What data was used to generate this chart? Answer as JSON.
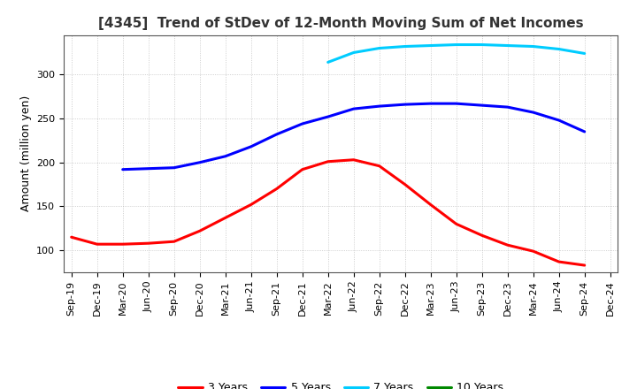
{
  "title": "[4345]  Trend of StDev of 12-Month Moving Sum of Net Incomes",
  "ylabel": "Amount (million yen)",
  "background_color": "#ffffff",
  "grid_color": "#aaaaaa",
  "x_labels": [
    "Sep-19",
    "Dec-19",
    "Mar-20",
    "Jun-20",
    "Sep-20",
    "Dec-20",
    "Mar-21",
    "Jun-21",
    "Sep-21",
    "Dec-21",
    "Mar-22",
    "Jun-22",
    "Sep-22",
    "Dec-22",
    "Mar-23",
    "Jun-23",
    "Sep-23",
    "Dec-23",
    "Mar-24",
    "Jun-24",
    "Sep-24",
    "Dec-24"
  ],
  "series": {
    "3 Years": {
      "color": "#ff0000",
      "values": [
        115,
        107,
        107,
        108,
        110,
        122,
        137,
        152,
        170,
        192,
        201,
        203,
        196,
        175,
        152,
        130,
        117,
        106,
        99,
        87,
        83,
        null
      ]
    },
    "5 Years": {
      "color": "#0000ff",
      "values": [
        null,
        null,
        192,
        193,
        194,
        200,
        207,
        218,
        232,
        244,
        252,
        261,
        264,
        266,
        267,
        267,
        265,
        263,
        257,
        248,
        235,
        null
      ]
    },
    "7 Years": {
      "color": "#00ccff",
      "values": [
        null,
        null,
        null,
        null,
        null,
        null,
        null,
        null,
        null,
        null,
        314,
        325,
        330,
        332,
        333,
        334,
        334,
        333,
        332,
        329,
        324,
        null
      ]
    },
    "10 Years": {
      "color": "#008800",
      "values": [
        null,
        null,
        null,
        null,
        null,
        null,
        null,
        null,
        null,
        null,
        null,
        null,
        null,
        null,
        null,
        null,
        null,
        null,
        null,
        null,
        null,
        null
      ]
    }
  },
  "ylim": [
    75,
    345
  ],
  "yticks": [
    100,
    150,
    200,
    250,
    300
  ],
  "legend_labels": [
    "3 Years",
    "5 Years",
    "7 Years",
    "10 Years"
  ],
  "legend_colors": [
    "#ff0000",
    "#0000ff",
    "#00ccff",
    "#008800"
  ],
  "title_fontsize": 11,
  "axis_fontsize": 9,
  "tick_fontsize": 8
}
